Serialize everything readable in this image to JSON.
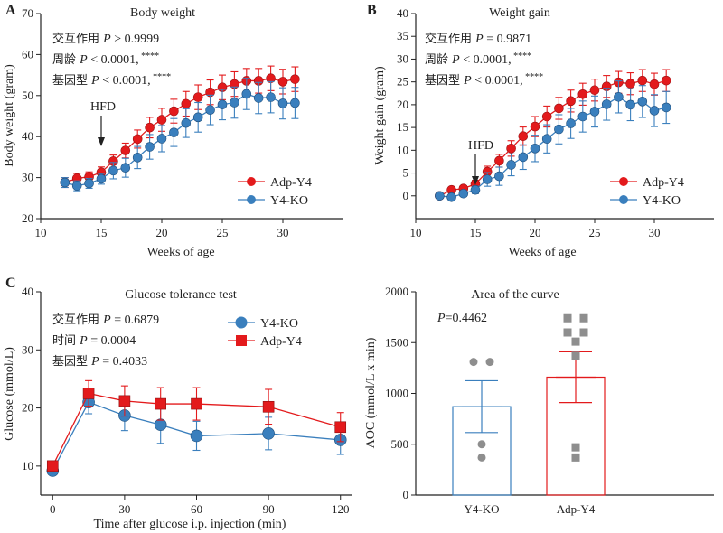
{
  "colors": {
    "adp": "#e31a1c",
    "ko": "#3a7fbd",
    "adp_pt": "#8e8e8e",
    "axis": "#222222"
  },
  "panels": [
    {
      "id": "A",
      "type": "line",
      "title": "Body weight",
      "xlabel": "Weeks of age",
      "ylabel": "Body weight (gram)",
      "xlim": [
        10,
        35
      ],
      "ylim": [
        20,
        70
      ],
      "xticks": [
        10,
        15,
        20,
        25,
        30
      ],
      "yticks": [
        20,
        30,
        40,
        50,
        60,
        70
      ],
      "stats": [
        {
          "label": "交互作用",
          "p": "P > 0.9999",
          "sig": ""
        },
        {
          "label": "周龄",
          "p": "P < 0.0001,",
          "sig": "****"
        },
        {
          "label": "基因型",
          "p": "P < 0.0001,",
          "sig": "****"
        }
      ],
      "annotation": {
        "text": "HFD",
        "x": 15
      },
      "series": [
        {
          "name": "Adp-Y4",
          "marker": "circle",
          "color": "#e31a1c",
          "x": [
            12,
            13,
            14,
            15,
            16,
            17,
            18,
            19,
            20,
            21,
            22,
            23,
            24,
            25,
            26,
            27,
            28,
            29,
            30,
            31
          ],
          "y": [
            28.8,
            29.8,
            30.2,
            31.3,
            34.0,
            36.6,
            39.4,
            42.2,
            44.1,
            46.2,
            48.0,
            49.6,
            50.8,
            52.0,
            52.8,
            53.6,
            53.6,
            54.2,
            53.4,
            54.0
          ],
          "err": [
            1.2,
            1.2,
            1.2,
            1.3,
            1.5,
            1.8,
            2.2,
            2.5,
            2.8,
            2.9,
            3.0,
            3.0,
            3.0,
            3.0,
            3.0,
            3.0,
            3.0,
            3.0,
            3.0,
            3.0
          ]
        },
        {
          "name": "Y4-KO",
          "marker": "circle",
          "color": "#3a7fbd",
          "x": [
            12,
            13,
            14,
            15,
            16,
            17,
            18,
            19,
            20,
            21,
            22,
            23,
            24,
            25,
            26,
            27,
            28,
            29,
            30,
            31
          ],
          "y": [
            28.8,
            28.0,
            28.6,
            29.7,
            31.7,
            32.4,
            34.9,
            37.5,
            39.5,
            41.0,
            43.3,
            44.7,
            46.5,
            47.8,
            48.3,
            50.4,
            49.4,
            49.6,
            48.1,
            48.2
          ],
          "err": [
            1.2,
            1.2,
            1.2,
            1.3,
            2.0,
            2.3,
            2.7,
            3.0,
            3.2,
            3.4,
            3.5,
            3.6,
            3.6,
            3.7,
            3.8,
            3.8,
            3.8,
            3.8,
            3.8,
            3.8
          ]
        }
      ]
    },
    {
      "id": "B",
      "type": "line",
      "title": "Weight gain",
      "xlabel": "Weeks of age",
      "ylabel": "Weight gain (gram)",
      "xlim": [
        10,
        35
      ],
      "ylim": [
        -5,
        40
      ],
      "xticks": [
        10,
        15,
        20,
        25,
        30
      ],
      "yticks": [
        0,
        5,
        10,
        15,
        20,
        25,
        30,
        35,
        40
      ],
      "stats": [
        {
          "label": "交互作用",
          "p": "P = 0.9871",
          "sig": ""
        },
        {
          "label": "周龄",
          "p": "P < 0.0001,",
          "sig": "****"
        },
        {
          "label": "基因型",
          "p": "P < 0.0001,",
          "sig": "****"
        }
      ],
      "annotation": {
        "text": "HFD",
        "x": 15
      },
      "series": [
        {
          "name": "Adp-Y4",
          "marker": "circle",
          "color": "#e31a1c",
          "x": [
            12,
            13,
            14,
            15,
            16,
            17,
            18,
            19,
            20,
            21,
            22,
            23,
            24,
            25,
            26,
            27,
            28,
            29,
            30,
            31
          ],
          "y": [
            0.0,
            1.3,
            1.6,
            2.6,
            5.3,
            7.7,
            10.4,
            13.1,
            15.2,
            17.4,
            19.2,
            20.8,
            22.3,
            23.2,
            24.0,
            24.9,
            24.6,
            25.3,
            24.5,
            25.3
          ],
          "err": [
            0.3,
            0.5,
            0.6,
            0.8,
            1.2,
            1.4,
            1.7,
            2.0,
            2.2,
            2.3,
            2.4,
            2.4,
            2.4,
            2.4,
            2.4,
            2.4,
            2.4,
            2.4,
            2.4,
            2.4
          ]
        },
        {
          "name": "Y4-KO",
          "marker": "circle",
          "color": "#3a7fbd",
          "x": [
            12,
            13,
            14,
            15,
            16,
            17,
            18,
            19,
            20,
            21,
            22,
            23,
            24,
            25,
            26,
            27,
            28,
            29,
            30,
            31
          ],
          "y": [
            0.0,
            -0.3,
            0.5,
            1.3,
            3.6,
            4.3,
            6.8,
            8.5,
            10.4,
            12.5,
            14.6,
            15.9,
            17.4,
            18.5,
            20.1,
            21.7,
            20.0,
            20.7,
            18.7,
            19.4
          ],
          "err": [
            0.3,
            0.5,
            0.6,
            0.8,
            1.5,
            2.0,
            2.4,
            2.7,
            2.9,
            3.1,
            3.2,
            3.3,
            3.4,
            3.4,
            3.5,
            3.5,
            3.5,
            3.5,
            3.5,
            3.5
          ]
        }
      ]
    },
    {
      "id": "C",
      "type": "line",
      "title": "Glucose tolerance test",
      "xlabel": "Time after glucose i.p. injection (min)",
      "ylabel": "Glucose (mmol/L)",
      "xlim": [
        -5,
        125
      ],
      "ylim": [
        5,
        40
      ],
      "xticks": [
        0,
        30,
        60,
        90,
        120
      ],
      "yticks": [
        10,
        20,
        30,
        40
      ],
      "stats": [
        {
          "label": "交互作用",
          "p": "P = 0.6879",
          "sig": ""
        },
        {
          "label": "时间",
          "p": "P = 0.0004",
          "sig": ""
        },
        {
          "label": "基因型",
          "p": "P = 0.4033",
          "sig": ""
        }
      ],
      "series": [
        {
          "name": "Y4-KO",
          "marker": "circle",
          "color": "#3a7fbd",
          "x": [
            0,
            15,
            30,
            45,
            60,
            90,
            120
          ],
          "y": [
            9.2,
            21.0,
            18.7,
            17.1,
            15.2,
            15.6,
            14.5
          ],
          "err": [
            0.6,
            2.0,
            2.6,
            3.2,
            2.5,
            2.8,
            2.5
          ]
        },
        {
          "name": "Adp-Y4",
          "marker": "square",
          "color": "#e31a1c",
          "x": [
            0,
            15,
            30,
            45,
            60,
            90,
            120
          ],
          "y": [
            10.0,
            22.5,
            21.2,
            20.7,
            20.7,
            20.2,
            16.7
          ],
          "err": [
            0.6,
            2.2,
            2.6,
            2.8,
            2.8,
            3.0,
            2.5
          ]
        }
      ]
    },
    {
      "id": "D",
      "type": "bar",
      "title": "Area of the curve",
      "xlabel": "",
      "ylabel": "AOC (mmol/L x min)",
      "ylim": [
        0,
        2000
      ],
      "yticks": [
        0,
        500,
        1000,
        1500,
        2000
      ],
      "stats": [
        {
          "label": "",
          "p": "P=0.4462",
          "sig": ""
        }
      ],
      "categories": [
        "Y4-KO",
        "Adp-Y4"
      ],
      "bars": [
        {
          "name": "Y4-KO",
          "mean": 870,
          "err": 255,
          "color": "#3a7fbd",
          "marker": "circle",
          "points": [
            1310,
            1310,
            500,
            370
          ]
        },
        {
          "name": "Adp-Y4",
          "mean": 1160,
          "err": 250,
          "color": "#e31a1c",
          "marker": "square",
          "points": [
            1740,
            1740,
            1600,
            1600,
            1510,
            1370,
            470,
            370
          ]
        }
      ]
    }
  ]
}
